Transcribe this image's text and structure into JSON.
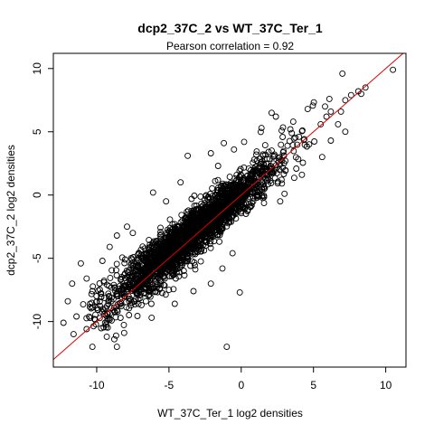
{
  "chart_data": {
    "type": "scatter",
    "title": "dcp2_37C_2 vs WT_37C_Ter_1",
    "subtitle": "Pearson correlation =  0.92",
    "xlabel": "WT_37C_Ter_1 log2 densities",
    "ylabel": "dcp2_37C_2 log2 densities",
    "xlim": [
      -13,
      11.4
    ],
    "ylim": [
      -13.6,
      11.2
    ],
    "x_ticks": [
      -10,
      -5,
      0,
      5,
      10
    ],
    "x_tick_labels": [
      "-10",
      "-5",
      "0",
      "5",
      "10"
    ],
    "y_ticks": [
      -10,
      -5,
      0,
      5,
      10
    ],
    "y_tick_labels": [
      "-10",
      "-5",
      "0",
      "5",
      "10"
    ],
    "grid": false,
    "legend": "none",
    "point_color": "#000000",
    "line_color": "#dd0000",
    "reference_line": {
      "intercept": 0.0,
      "slope": 1.0
    },
    "pearson_r": 0.92,
    "series": [
      {
        "points": [
          [
            10.5,
            9.9
          ],
          [
            7.0,
            9.6
          ],
          [
            8.6,
            8.5
          ],
          [
            8.1,
            8.2
          ],
          [
            7.6,
            7.9
          ],
          [
            8.3,
            8.0
          ],
          [
            7.2,
            7.5
          ],
          [
            6.9,
            6.6
          ],
          [
            6.2,
            6.6
          ],
          [
            5.9,
            6.2
          ],
          [
            5.5,
            5.6
          ],
          [
            4.6,
            6.8
          ],
          [
            5.8,
            7.0
          ],
          [
            6.1,
            7.6
          ],
          [
            2.1,
            6.5
          ],
          [
            2.4,
            6.2
          ],
          [
            2.8,
            5.1
          ],
          [
            3.4,
            5.2
          ],
          [
            1.4,
            5.3
          ],
          [
            0.2,
            4.2
          ],
          [
            -1.2,
            4.1
          ],
          [
            -0.5,
            3.6
          ],
          [
            -2.1,
            3.3
          ],
          [
            -3.7,
            3.1
          ],
          [
            -1.6,
            2.3
          ],
          [
            -1.8,
            1.1
          ],
          [
            -4.2,
            1.0
          ],
          [
            -6.1,
            0.2
          ],
          [
            -5.2,
            -0.5
          ],
          [
            6.2,
            4.3
          ],
          [
            7.2,
            5.0
          ],
          [
            4.2,
            1.6
          ],
          [
            3.0,
            0.1
          ],
          [
            2.7,
            -0.5
          ],
          [
            5.6,
            3.0
          ],
          [
            4.7,
            4.0
          ],
          [
            6.7,
            5.6
          ],
          [
            3.6,
            5.8
          ],
          [
            4.0,
            4.6
          ],
          [
            -0.1,
            -7.7
          ],
          [
            -1.0,
            -12.0
          ],
          [
            -10.3,
            -12.0
          ],
          [
            -11.6,
            -11.0
          ],
          [
            -12.3,
            -10.1
          ],
          [
            -11.4,
            -9.6
          ],
          [
            -10.7,
            -10.6
          ],
          [
            -9.3,
            -11.2
          ],
          [
            -8.1,
            -10.9
          ],
          [
            -8.6,
            -12.0
          ],
          [
            -12.0,
            -8.4
          ],
          [
            -11.7,
            -7.0
          ],
          [
            -10.3,
            -7.6
          ],
          [
            -10.7,
            -6.6
          ],
          [
            -11.1,
            -5.4
          ],
          [
            -8.6,
            -9.1
          ],
          [
            -8.1,
            -8.0
          ],
          [
            -6.9,
            -8.7
          ],
          [
            -6.2,
            -9.7
          ],
          [
            -4.6,
            -8.6
          ],
          [
            -5.0,
            -7.5
          ],
          [
            -3.3,
            -7.6
          ],
          [
            -2.1,
            -7.0
          ],
          [
            -1.3,
            -5.8
          ],
          [
            -7.9,
            -2.5
          ],
          [
            -8.6,
            -3.2
          ],
          [
            -9.1,
            -4.1
          ],
          [
            -9.6,
            -5.2
          ],
          [
            -7.5,
            -3.0
          ],
          [
            -0.6,
            -4.6
          ]
        ]
      }
    ]
  }
}
